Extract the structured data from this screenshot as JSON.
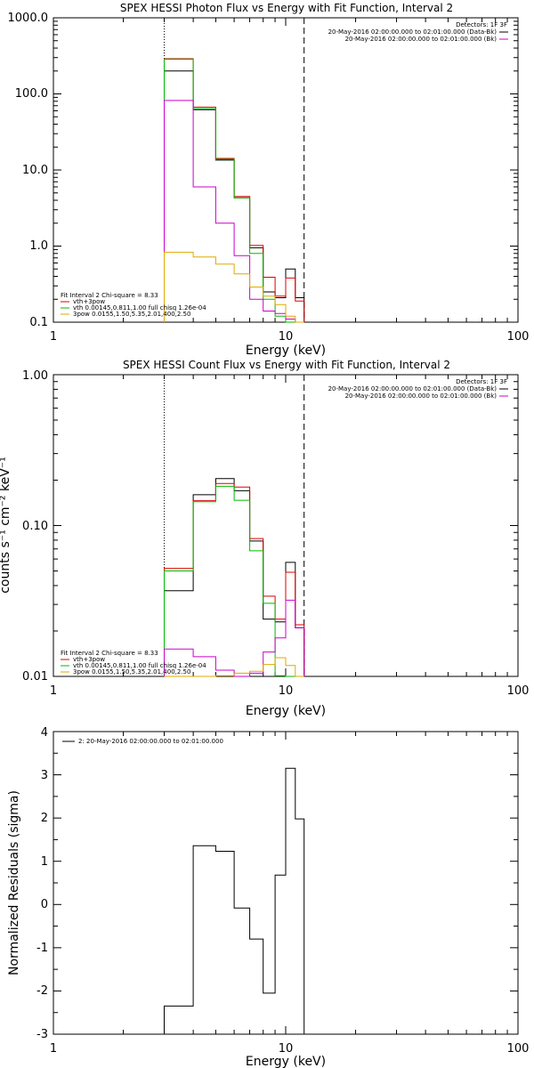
{
  "chart_data": [
    {
      "type": "line",
      "title": "SPEX HESSI Photon Flux vs Energy with Fit Function, Interval 2",
      "xlabel": "Energy (keV)",
      "ylabel": "",
      "xscale": "log",
      "yscale": "log",
      "xlim": [
        1,
        100
      ],
      "ylim": [
        0.1,
        1000
      ],
      "x_ticks": [
        "1",
        "10",
        "100"
      ],
      "y_ticks": [
        "0.1",
        "1.0",
        "10.0",
        "100.0",
        "1000.0"
      ],
      "grid": false,
      "legend_position": "top-right",
      "header": "Detectors: 1F 3F",
      "legend": [
        {
          "label": "20-May-2016 02:00:00.000 to 02:01:00.000 (Data-Bk)",
          "color": "#000000"
        },
        {
          "label": "20-May-2016 02:00:00.000 to 02:01:00.000 (Bk)",
          "color": "#cc00cc"
        }
      ],
      "fit_info": {
        "line0": "Fit Interval 2   Chi-square = 8.33",
        "items": [
          {
            "label": "vth+3pow",
            "color": "#dd0000"
          },
          {
            "label": "vth 0.00145,0.811,1.00   full chisq 1.26e-04",
            "color": "#00bb00"
          },
          {
            "label": "3pow 0.0155,1.50,5.35,2.01,400,2.50",
            "color": "#ddaa00"
          }
        ]
      },
      "vlines": [
        {
          "x": 3.0,
          "style": "dotted"
        },
        {
          "x": 12.0,
          "style": "dashed"
        }
      ],
      "edges": [
        3.0,
        4.0,
        5.0,
        6.0,
        7.0,
        8.0,
        9.0,
        10.0,
        11.0,
        12.0
      ],
      "series": [
        {
          "color": "#000000",
          "values": [
            200,
            62,
            13.5,
            4.3,
            0.95,
            0.25,
            0.21,
            0.5,
            0.21
          ]
        },
        {
          "color": "#dd0000",
          "values": [
            290,
            67,
            14.2,
            4.5,
            1.02,
            0.39,
            0.22,
            0.38,
            0.19
          ]
        },
        {
          "color": "#00bb00",
          "values": [
            285,
            64,
            13.8,
            4.3,
            0.8,
            0.2,
            0.12,
            0.09,
            0.09
          ]
        },
        {
          "color": "#cc00cc",
          "values": [
            82,
            6.0,
            2.0,
            0.75,
            0.2,
            0.14,
            0.13,
            0.11,
            0.1
          ]
        },
        {
          "color": "#ddaa00",
          "values": [
            0.83,
            0.72,
            0.58,
            0.43,
            0.29,
            0.22,
            0.17,
            0.12,
            0.09
          ]
        }
      ]
    },
    {
      "type": "line",
      "title": "SPEX HESSI Count Flux vs Energy with Fit Function, Interval 2",
      "xlabel": "Energy (keV)",
      "ylabel": "counts s⁻¹ cm⁻² keV⁻¹",
      "xscale": "log",
      "yscale": "log",
      "xlim": [
        1,
        100
      ],
      "ylim": [
        0.01,
        1.0
      ],
      "x_ticks": [
        "1",
        "10",
        "100"
      ],
      "y_ticks": [
        "0.01",
        "0.10",
        "1.00"
      ],
      "grid": false,
      "legend_position": "top-right",
      "header": "Detectors: 1F 3F",
      "legend": [
        {
          "label": "20-May-2016 02:00:00.000 to 02:01:00.000 (Data-Bk)",
          "color": "#000000"
        },
        {
          "label": "20-May-2016 02:00:00.000 to 02:01:00.000 (Bk)",
          "color": "#cc00cc"
        }
      ],
      "fit_info": {
        "line0": "Fit Interval 2   Chi-square = 8.33",
        "items": [
          {
            "label": "vth+3pow",
            "color": "#dd0000"
          },
          {
            "label": "vth 0.00145,0.811,1.00   full chisq 1.26e-04",
            "color": "#00bb00"
          },
          {
            "label": "3pow 0.0155,1.50,5.35,2.01,400,2.50",
            "color": "#ddaa00"
          }
        ]
      },
      "vlines": [
        {
          "x": 3.0,
          "style": "dotted"
        },
        {
          "x": 12.0,
          "style": "dashed"
        }
      ],
      "edges": [
        3.0,
        4.0,
        5.0,
        6.0,
        7.0,
        8.0,
        9.0,
        10.0,
        11.0,
        12.0
      ],
      "series": [
        {
          "color": "#000000",
          "values": [
            0.037,
            0.16,
            0.205,
            0.17,
            0.079,
            0.024,
            0.023,
            0.057,
            0.021
          ]
        },
        {
          "color": "#dd0000",
          "values": [
            0.052,
            0.146,
            0.19,
            0.18,
            0.082,
            0.034,
            0.024,
            0.049,
            0.022
          ]
        },
        {
          "color": "#00bb00",
          "values": [
            0.05,
            0.144,
            0.182,
            0.147,
            0.068,
            0.0305,
            0.0101,
            0.008,
            0.008
          ]
        },
        {
          "color": "#cc00cc",
          "values": [
            0.0152,
            0.0135,
            0.011,
            0.0098,
            0.0105,
            0.0145,
            0.018,
            0.032,
            0.021
          ]
        },
        {
          "color": "#ddaa00",
          "values": [
            0.0098,
            0.0099,
            0.0101,
            0.0105,
            0.0108,
            0.012,
            0.0133,
            0.0118,
            0.0098
          ]
        }
      ]
    },
    {
      "type": "line",
      "title": "",
      "xlabel": "Energy (keV)",
      "ylabel": "Normalized Residuals (sigma)",
      "xscale": "log",
      "yscale": "linear",
      "xlim": [
        1,
        100
      ],
      "ylim": [
        -3,
        4
      ],
      "x_ticks": [
        "1",
        "10",
        "100"
      ],
      "y_ticks": [
        "-3",
        "-2",
        "-1",
        "0",
        "1",
        "2",
        "3",
        "4"
      ],
      "grid": false,
      "legend_position": "top-left",
      "legend": [
        {
          "label": "2: 20-May-2016 02:00:00.000 to 02:01:00.000",
          "color": "#000000"
        }
      ],
      "edges": [
        3.0,
        4.0,
        5.0,
        6.0,
        7.0,
        8.0,
        9.0,
        10.0,
        11.0,
        12.0
      ],
      "series": [
        {
          "color": "#000000",
          "values": [
            -2.35,
            1.36,
            1.23,
            -0.08,
            -0.8,
            -2.05,
            0.68,
            3.15,
            1.98
          ]
        }
      ]
    }
  ]
}
